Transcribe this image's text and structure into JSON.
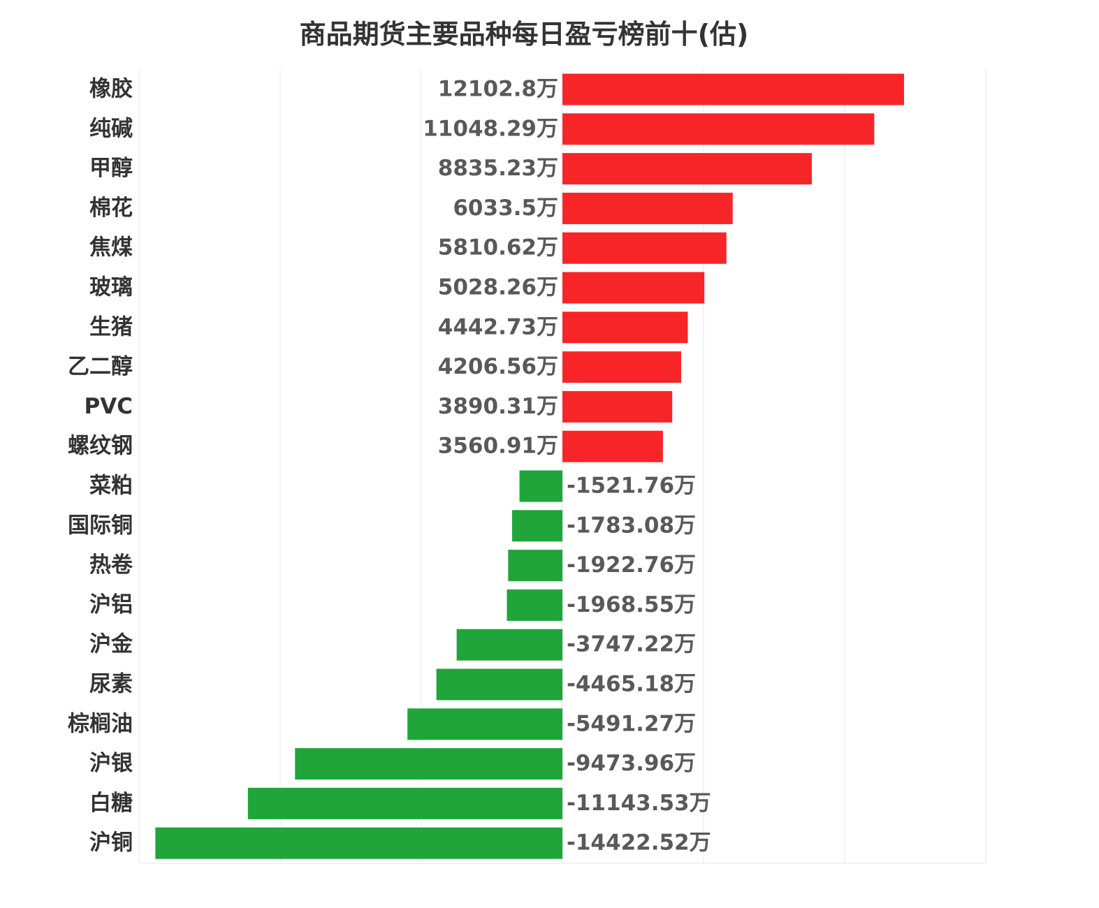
{
  "chart_data": {
    "type": "bar",
    "orientation": "horizontal",
    "title": "商品期货主要品种每日盈亏榜前十(估)",
    "xlabel": "",
    "ylabel": "",
    "unit": "万",
    "xlim": [
      -15000,
      15000
    ],
    "grid": true,
    "legend": "none",
    "colors": {
      "positive": "#f82528",
      "negative": "#1fa53a",
      "label": "#595959",
      "category": "#333333",
      "grid": "#e6e6e6"
    },
    "categories": [
      "橡胶",
      "纯碱",
      "甲醇",
      "棉花",
      "焦煤",
      "玻璃",
      "生猪",
      "乙二醇",
      "PVC",
      "螺纹钢",
      "菜粕",
      "国际铜",
      "热卷",
      "沪铝",
      "沪金",
      "尿素",
      "棕榈油",
      "沪银",
      "白糖",
      "沪铜"
    ],
    "values": [
      12102.8,
      11048.29,
      8835.23,
      6033.5,
      5810.62,
      5028.26,
      4442.73,
      4206.56,
      3890.31,
      3560.91,
      -1521.76,
      -1783.08,
      -1922.76,
      -1968.55,
      -3747.22,
      -4465.18,
      -5491.27,
      -9473.96,
      -11143.53,
      -14422.52
    ],
    "value_labels": [
      "12102.8万",
      "11048.29万",
      "8835.23万",
      "6033.5万",
      "5810.62万",
      "5028.26万",
      "4442.73万",
      "4206.56万",
      "3890.31万",
      "3560.91万",
      "-1521.76万",
      "-1783.08万",
      "-1922.76万",
      "-1968.55万",
      "-3747.22万",
      "-4465.18万",
      "-5491.27万",
      "-9473.96万",
      "-11143.53万",
      "-14422.52万"
    ]
  }
}
